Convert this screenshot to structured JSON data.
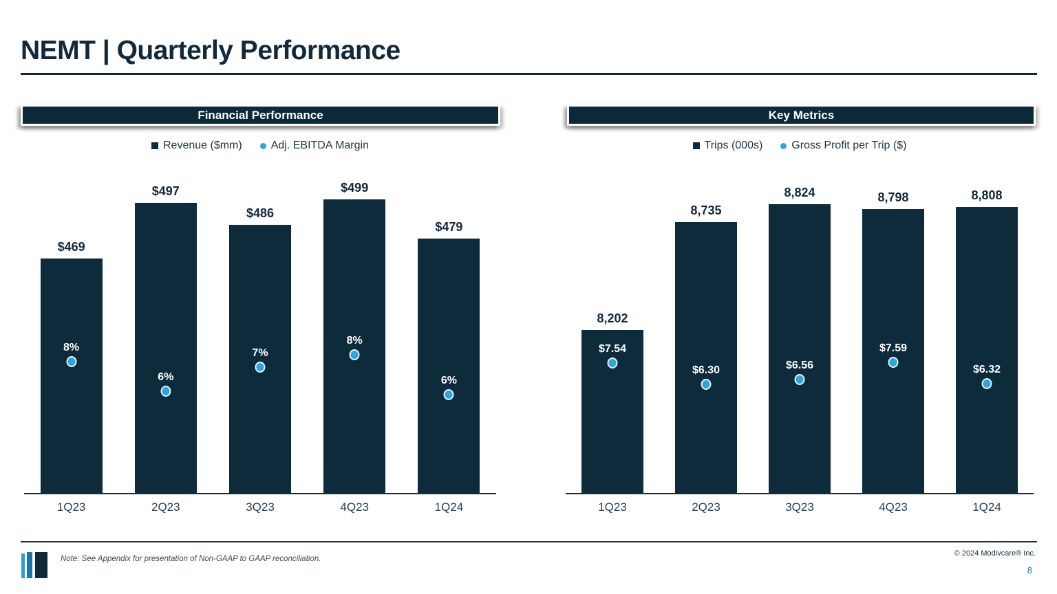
{
  "slide": {
    "title": "NEMT | Quarterly Performance",
    "footer": {
      "note": "Note: See Appendix for presentation of Non-GAAP to GAAP reconciliation.",
      "copyright": "© 2024 Modivcare® Inc.",
      "page_number": "8"
    }
  },
  "colors": {
    "navy": "#0E2B3C",
    "accent_blue": "#2BA6DF",
    "page_number_blue": "#1E73B0",
    "logo_bars": [
      "#2BA0D8",
      "#1B74B0",
      "#0E2B3C"
    ]
  },
  "chart_data": [
    {
      "type": "bar",
      "panel_title": "Financial Performance",
      "categories": [
        "1Q23",
        "2Q23",
        "3Q23",
        "4Q23",
        "1Q24"
      ],
      "series": [
        {
          "name": "Revenue ($mm)",
          "kind": "bar",
          "marker": "square",
          "axis": "primary",
          "values": [
            469,
            497,
            486,
            499,
            479
          ],
          "labels": [
            "$469",
            "$497",
            "$486",
            "$499",
            "$479"
          ],
          "color": "#0E2B3C"
        },
        {
          "name": "Adj. EBITDA Margin",
          "kind": "point",
          "marker": "circle",
          "axis": "secondary",
          "values": [
            7.6,
            5.9,
            7.3,
            8.0,
            5.7
          ],
          "labels": [
            "8%",
            "6%",
            "7%",
            "8%",
            "6%"
          ],
          "color": "#2BA6DF"
        }
      ],
      "ylim_primary": [
        350,
        525
      ],
      "ylim_secondary": [
        0,
        20
      ],
      "legend_position": "top",
      "grid": false
    },
    {
      "type": "bar",
      "panel_title": "Key Metrics",
      "categories": [
        "1Q23",
        "2Q23",
        "3Q23",
        "4Q23",
        "1Q24"
      ],
      "series": [
        {
          "name": "Trips (000s)",
          "kind": "bar",
          "marker": "square",
          "axis": "primary",
          "values": [
            8202,
            8735,
            8824,
            8798,
            8808
          ],
          "labels": [
            "8,202",
            "8,735",
            "8,824",
            "8,798",
            "8,808"
          ],
          "color": "#0E2B3C"
        },
        {
          "name": "Gross Profit per Trip ($)",
          "kind": "point",
          "marker": "circle",
          "axis": "secondary",
          "values": [
            7.54,
            6.3,
            6.56,
            7.59,
            6.32
          ],
          "labels": [
            "$7.54",
            "$6.30",
            "$6.56",
            "$7.59",
            "$6.32"
          ],
          "color": "#2BA6DF"
        }
      ],
      "ylim_primary": [
        7400,
        9100
      ],
      "ylim_secondary": [
        0,
        20
      ],
      "legend_position": "top",
      "grid": false
    }
  ]
}
